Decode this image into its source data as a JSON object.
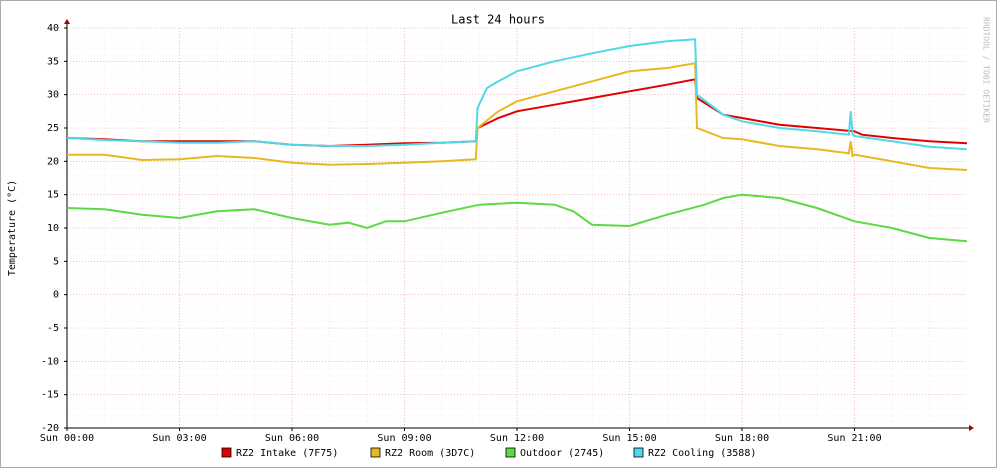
{
  "chart_data": {
    "type": "line",
    "title": "Last 24 hours",
    "y_label": "Temperature (°C)",
    "watermark": "RRDTOOL / TOBI OETIKER",
    "xlim": [
      0,
      24
    ],
    "ylim": [
      -20,
      40
    ],
    "yticks": [
      -20,
      -15,
      -10,
      -5,
      0,
      5,
      10,
      15,
      20,
      25,
      30,
      35,
      40
    ],
    "xticks": [
      {
        "value": 0,
        "label": "Sun 00:00"
      },
      {
        "value": 3,
        "label": "Sun 03:00"
      },
      {
        "value": 6,
        "label": "Sun 06:00"
      },
      {
        "value": 9,
        "label": "Sun 09:00"
      },
      {
        "value": 12,
        "label": "Sun 12:00"
      },
      {
        "value": 15,
        "label": "Sun 15:00"
      },
      {
        "value": 18,
        "label": "Sun 18:00"
      },
      {
        "value": 21,
        "label": "Sun 21:00"
      }
    ],
    "grid": true,
    "series": [
      {
        "name": "RZ2 Intake (7F75)",
        "color": "#e00000",
        "x": [
          0,
          1,
          2,
          3,
          4,
          5,
          6,
          7,
          8,
          9,
          10,
          10.9,
          10.95,
          11.5,
          12,
          13,
          14,
          15,
          16,
          16.75,
          16.8,
          17.5,
          18,
          19,
          20,
          21,
          21.2,
          22,
          23,
          24
        ],
        "values": [
          23.5,
          23.3,
          23,
          23,
          23,
          23,
          22.5,
          22.3,
          22.5,
          22.7,
          22.8,
          23,
          25,
          26.5,
          27.5,
          28.5,
          29.5,
          30.5,
          31.5,
          32.3,
          29.5,
          27,
          26.5,
          25.5,
          25,
          24.5,
          24,
          23.5,
          23,
          22.7
        ]
      },
      {
        "name": "RZ2 Room (3D7C)",
        "color": "#e8b820",
        "x": [
          0,
          1,
          2,
          3,
          4,
          5,
          6,
          7,
          8,
          9,
          10,
          10.9,
          10.95,
          11.5,
          12,
          13,
          14,
          15,
          16,
          16.75,
          16.8,
          17.5,
          18,
          19,
          20,
          20.85,
          20.9,
          20.95,
          21,
          22,
          23,
          24
        ],
        "values": [
          21,
          21,
          20.2,
          20.3,
          20.8,
          20.5,
          19.8,
          19.5,
          19.6,
          19.8,
          20,
          20.3,
          25,
          27.5,
          29,
          30.5,
          32,
          33.5,
          34,
          34.7,
          25,
          23.5,
          23.3,
          22.3,
          21.8,
          21.2,
          23,
          20.8,
          21,
          20,
          19,
          18.7
        ]
      },
      {
        "name": "Outdoor (2745)",
        "color": "#5cd945",
        "x": [
          0,
          1,
          2,
          3,
          4,
          5,
          6,
          7,
          7.5,
          8,
          8.5,
          9,
          10,
          11,
          12,
          13,
          13.5,
          14,
          15,
          16,
          17,
          17.5,
          18,
          19,
          20,
          21,
          22,
          23,
          24
        ],
        "values": [
          13,
          12.8,
          12,
          11.5,
          12.5,
          12.8,
          11.5,
          10.5,
          10.8,
          10,
          11,
          11,
          12.3,
          13.5,
          13.8,
          13.5,
          12.5,
          10.5,
          10.3,
          12,
          13.5,
          14.5,
          15,
          14.5,
          13,
          11,
          10,
          8.5,
          8
        ]
      },
      {
        "name": "RZ2 Cooling (3588)",
        "color": "#50d8e8",
        "x": [
          0,
          1,
          2,
          3,
          4,
          5,
          6,
          7,
          8,
          9,
          10,
          10.9,
          10.95,
          11.2,
          11.5,
          12,
          13,
          14,
          15,
          16,
          16.75,
          16.8,
          17.5,
          18,
          19,
          20,
          20.85,
          20.9,
          20.95,
          21,
          22,
          23,
          24
        ],
        "values": [
          23.5,
          23.2,
          23,
          22.8,
          22.8,
          23,
          22.5,
          22.3,
          22.3,
          22.5,
          22.8,
          23,
          28,
          31,
          32,
          33.5,
          35,
          36.2,
          37.3,
          38,
          38.3,
          30,
          27,
          26,
          25,
          24.5,
          24,
          27.5,
          24,
          23.8,
          23,
          22.2,
          21.8
        ]
      }
    ]
  }
}
